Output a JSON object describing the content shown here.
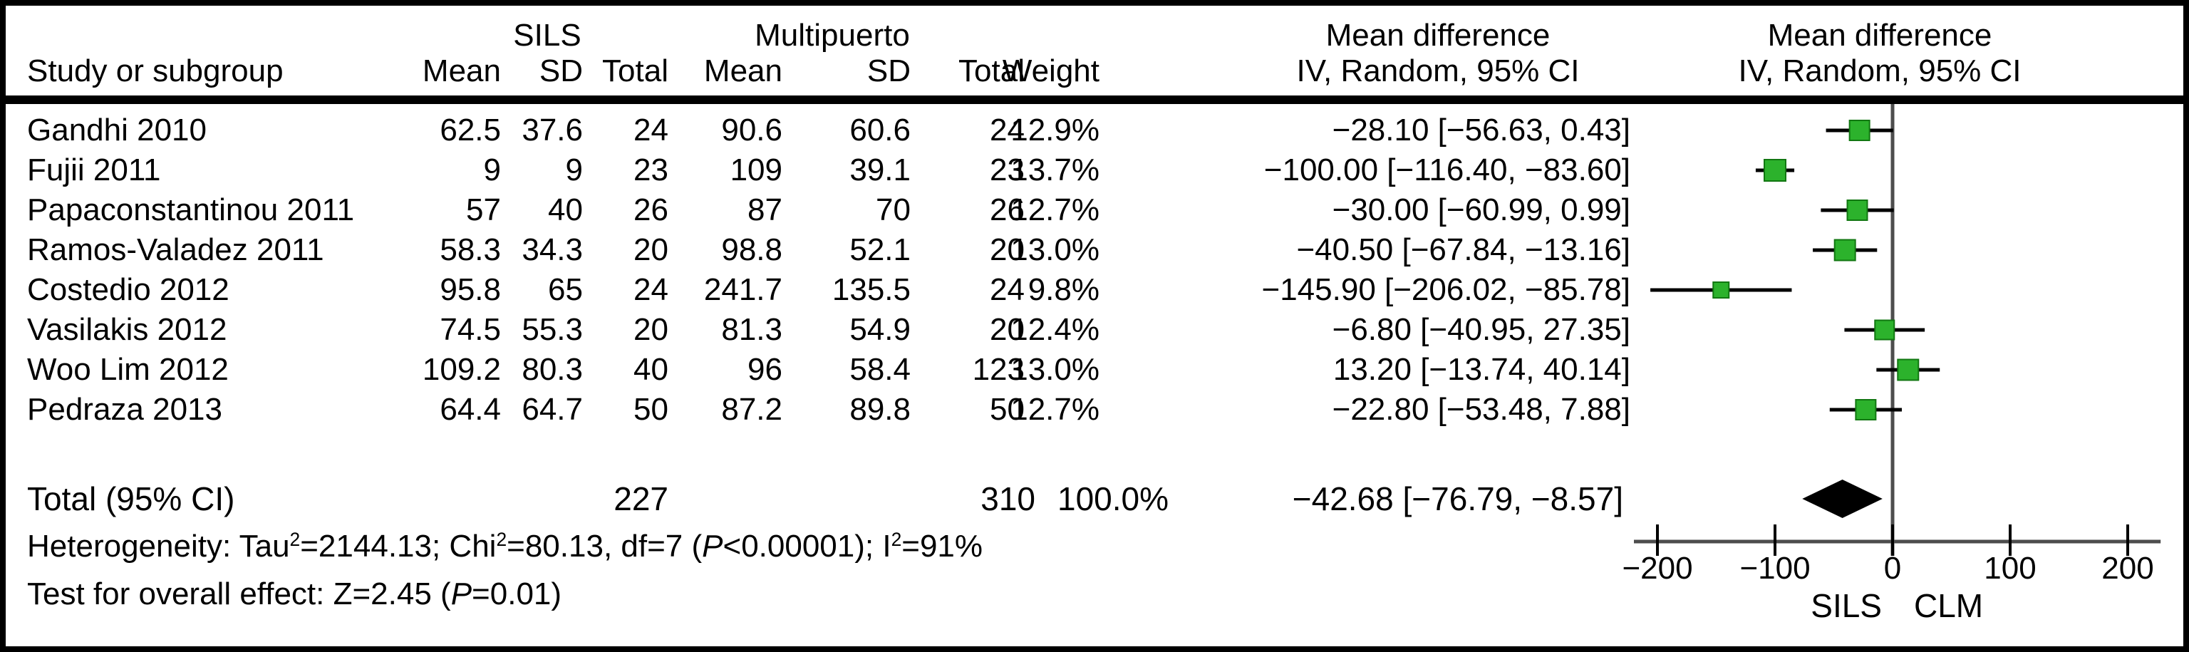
{
  "header": {
    "study_col": "Study or subgroup",
    "group1_label": "SILS",
    "group2_label": "Multipuerto",
    "g1_mean": "Mean",
    "g1_sd": "SD",
    "g1_total": "Total",
    "g2_mean": "Mean",
    "g2_sd": "SD",
    "g2_total": "Total",
    "weight": "Weight",
    "md_col_line1": "Mean difference",
    "md_col_line2": "IV, Random, 95% CI",
    "plot_col_line1": "Mean difference",
    "plot_col_line2": "IV, Random, 95% CI"
  },
  "chart_data": {
    "type": "forest",
    "effect_measure": "Mean difference, IV, Random, 95% CI",
    "studies": [
      {
        "name": "Gandhi 2010",
        "g1_mean": "62.5",
        "g1_sd": "37.6",
        "g1_total": "24",
        "g2_mean": "90.6",
        "g2_sd": "60.6",
        "g2_total": "24",
        "weight": "12.9%",
        "weight_value": 12.9,
        "md_text": "−28.10 [−56.63, 0.43]",
        "md": -28.1,
        "ci_low": -56.63,
        "ci_high": 0.43
      },
      {
        "name": "Fujii 2011",
        "g1_mean": "9",
        "g1_sd": "9",
        "g1_total": "23",
        "g2_mean": "109",
        "g2_sd": "39.1",
        "g2_total": "23",
        "weight": "13.7%",
        "weight_value": 13.7,
        "md_text": "−100.00 [−116.40, −83.60]",
        "md": -100.0,
        "ci_low": -116.4,
        "ci_high": -83.6
      },
      {
        "name": "Papaconstantinou 2011",
        "g1_mean": "57",
        "g1_sd": "40",
        "g1_total": "26",
        "g2_mean": "87",
        "g2_sd": "70",
        "g2_total": "26",
        "weight": "12.7%",
        "weight_value": 12.7,
        "md_text": "−30.00 [−60.99, 0.99]",
        "md": -30.0,
        "ci_low": -60.99,
        "ci_high": 0.99
      },
      {
        "name": "Ramos-Valadez 2011",
        "g1_mean": "58.3",
        "g1_sd": "34.3",
        "g1_total": "20",
        "g2_mean": "98.8",
        "g2_sd": "52.1",
        "g2_total": "20",
        "weight": "13.0%",
        "weight_value": 13.0,
        "md_text": "−40.50 [−67.84, −13.16]",
        "md": -40.5,
        "ci_low": -67.84,
        "ci_high": -13.16
      },
      {
        "name": "Costedio 2012",
        "g1_mean": "95.8",
        "g1_sd": "65",
        "g1_total": "24",
        "g2_mean": "241.7",
        "g2_sd": "135.5",
        "g2_total": "24",
        "weight": "9.8%",
        "weight_value": 9.8,
        "md_text": "−145.90 [−206.02, −85.78]",
        "md": -145.9,
        "ci_low": -206.02,
        "ci_high": -85.78
      },
      {
        "name": "Vasilakis 2012",
        "g1_mean": "74.5",
        "g1_sd": "55.3",
        "g1_total": "20",
        "g2_mean": "81.3",
        "g2_sd": "54.9",
        "g2_total": "20",
        "weight": "12.4%",
        "weight_value": 12.4,
        "md_text": "−6.80 [−40.95, 27.35]",
        "md": -6.8,
        "ci_low": -40.95,
        "ci_high": 27.35
      },
      {
        "name": "Woo Lim 2012",
        "g1_mean": "109.2",
        "g1_sd": "80.3",
        "g1_total": "40",
        "g2_mean": "96",
        "g2_sd": "58.4",
        "g2_total": "123",
        "weight": "13.0%",
        "weight_value": 13.0,
        "md_text": "13.20 [−13.74, 40.14]",
        "md": 13.2,
        "ci_low": -13.74,
        "ci_high": 40.14
      },
      {
        "name": "Pedraza 2013",
        "g1_mean": "64.4",
        "g1_sd": "64.7",
        "g1_total": "50",
        "g2_mean": "87.2",
        "g2_sd": "89.8",
        "g2_total": "50",
        "weight": "12.7%",
        "weight_value": 12.7,
        "md_text": "−22.80 [−53.48, 7.88]",
        "md": -22.8,
        "ci_low": -53.48,
        "ci_high": 7.88
      }
    ],
    "total": {
      "label": "Total (95% CI)",
      "g1_total": "227",
      "g2_total": "310",
      "weight": "100.0%",
      "md_text": "−42.68 [−76.79, −8.57]",
      "md": -42.68,
      "ci_low": -76.79,
      "ci_high": -8.57
    },
    "heterogeneity_segments": [
      {
        "t": "Heterogeneity: Tau"
      },
      {
        "sup": "2"
      },
      {
        "t": "=2144.13; Chi"
      },
      {
        "sup": "2"
      },
      {
        "t": "=80.13, df=7 ("
      },
      {
        "i": "P"
      },
      {
        "t": "<0.00001); I"
      },
      {
        "sup": "2"
      },
      {
        "t": "=91%"
      }
    ],
    "overall_effect_segments": [
      {
        "t": "Test for overall effect: Z=2.45 ("
      },
      {
        "i": "P"
      },
      {
        "t": "=0.01)"
      }
    ],
    "axis": {
      "ticks": [
        -200,
        -100,
        0,
        100,
        200
      ],
      "tick_labels": [
        "−200",
        "−100",
        "0",
        "100",
        "200"
      ],
      "xmin": -220,
      "xmax": 228,
      "favours_left": "SILS",
      "favours_right": "CLM"
    }
  },
  "colors": {
    "marker_fill": "#2cb22c",
    "marker_border": "#117711",
    "ci_line": "#000000",
    "axis_line": "#4d4d4d",
    "diamond": "#000000",
    "text": "#000000"
  }
}
